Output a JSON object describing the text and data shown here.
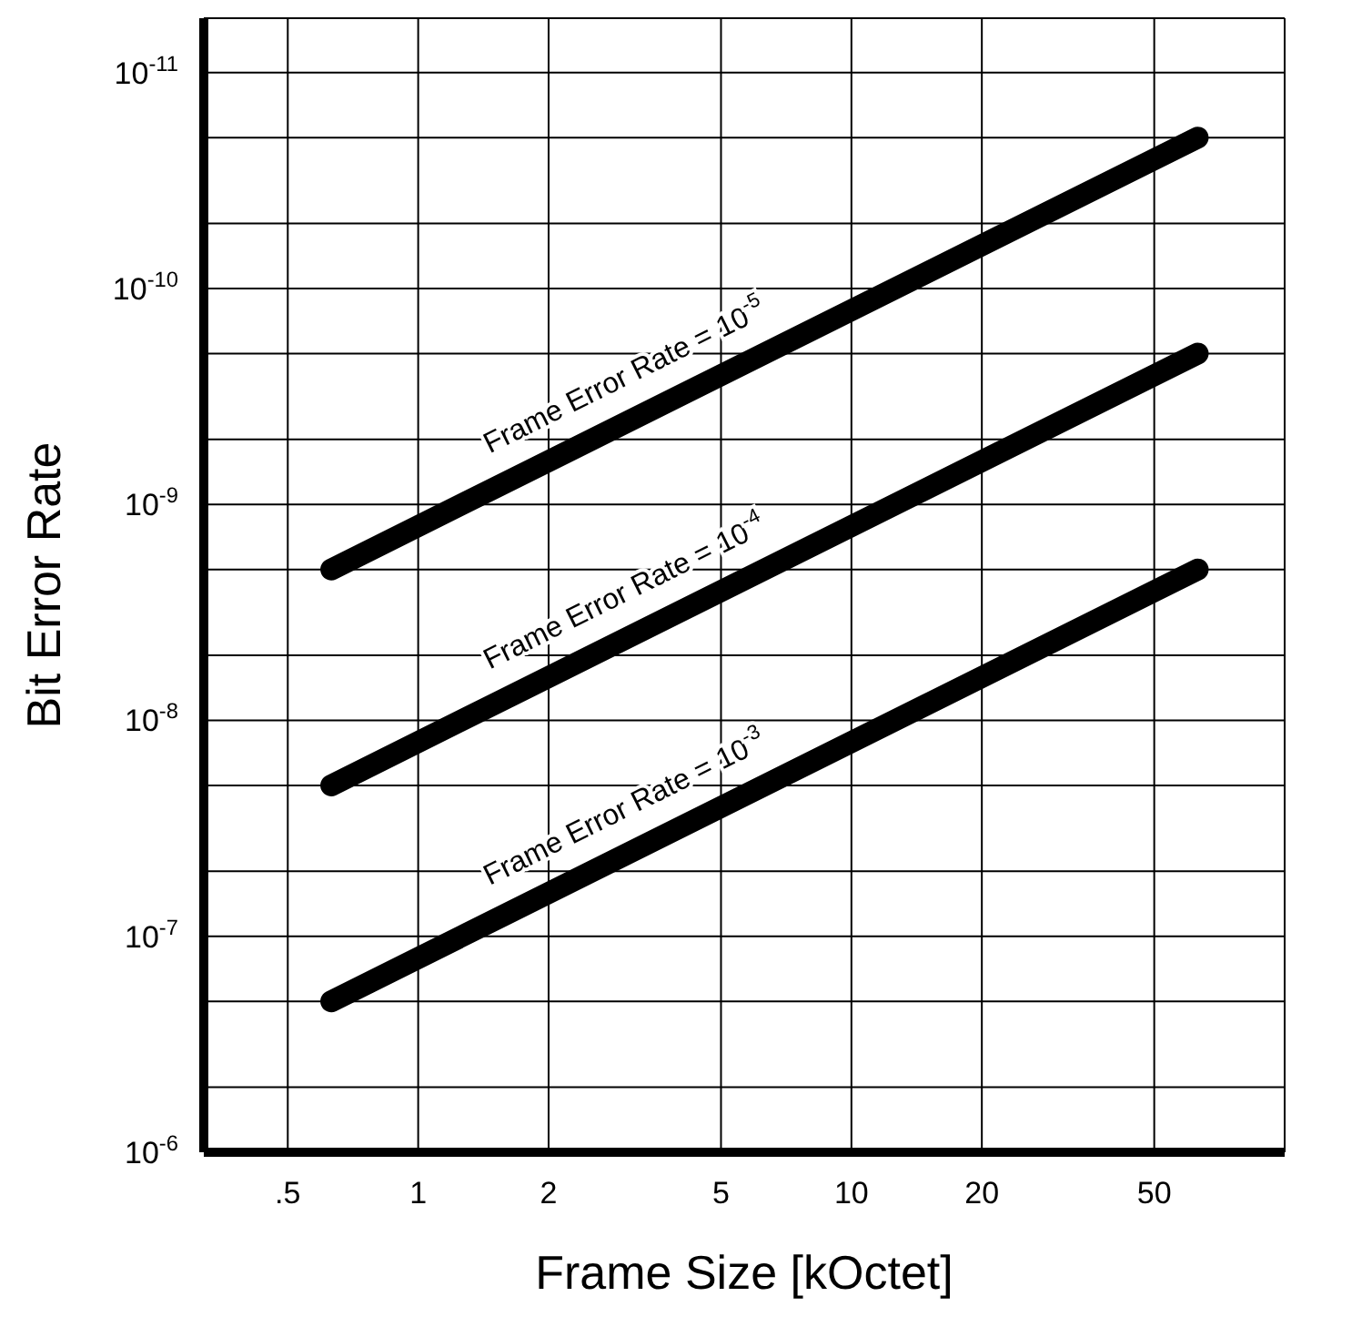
{
  "chart_data": {
    "type": "line",
    "xlabel": "Frame Size [kOctet]",
    "ylabel": "Bit Error Rate",
    "log": "xy",
    "grid": true,
    "line_style": "solid",
    "xlim": [
      0.32,
      100
    ],
    "xticks": [
      {
        "value": 0.5,
        "label": ".5"
      },
      1,
      2,
      5,
      10,
      20,
      50,
      {
        "value": 100,
        "label": null
      }
    ],
    "ylim": [
      1e-06,
      5.6e-12
    ],
    "yticks": [
      {
        "value": 1e-06,
        "label": "10$^{-6}$"
      },
      {
        "value": 5e-07,
        "label": null
      },
      {
        "value": 2e-07,
        "label": null
      },
      {
        "value": 1e-07,
        "label": "10$^{-7}$"
      },
      {
        "value": 5e-08,
        "label": null
      },
      {
        "value": 2e-08,
        "label": null
      },
      {
        "value": 1e-08,
        "label": "10$^{-8}$"
      },
      {
        "value": 5e-09,
        "label": null
      },
      {
        "value": 2e-09,
        "label": null
      },
      {
        "value": 1e-09,
        "label": "10$^{-9}$"
      },
      {
        "value": 5e-10,
        "label": null
      },
      {
        "value": 2e-10,
        "label": null
      },
      {
        "value": 1e-10,
        "label": "10$^{-10}$"
      },
      {
        "value": 5e-11,
        "label": null
      },
      {
        "value": 2e-11,
        "label": null
      },
      {
        "value": 1e-11,
        "label": "10$^{-11}$"
      }
    ],
    "x": [
      0.63,
      63
    ],
    "series": [
      {
        "color": "#000000",
        "values": [
          2e-09,
          2e-11
        ]
      },
      {
        "color": "#000000",
        "values": [
          2e-08,
          2e-10
        ]
      },
      {
        "color": "#000000",
        "values": [
          2e-07,
          2e-09
        ]
      }
    ],
    "annotations": [
      "Frame Error Rate = 10$^{-5}$",
      "Frame Error Rate = 10$^{-4}$",
      "Frame Error Rate = 10$^{-3}$"
    ]
  }
}
